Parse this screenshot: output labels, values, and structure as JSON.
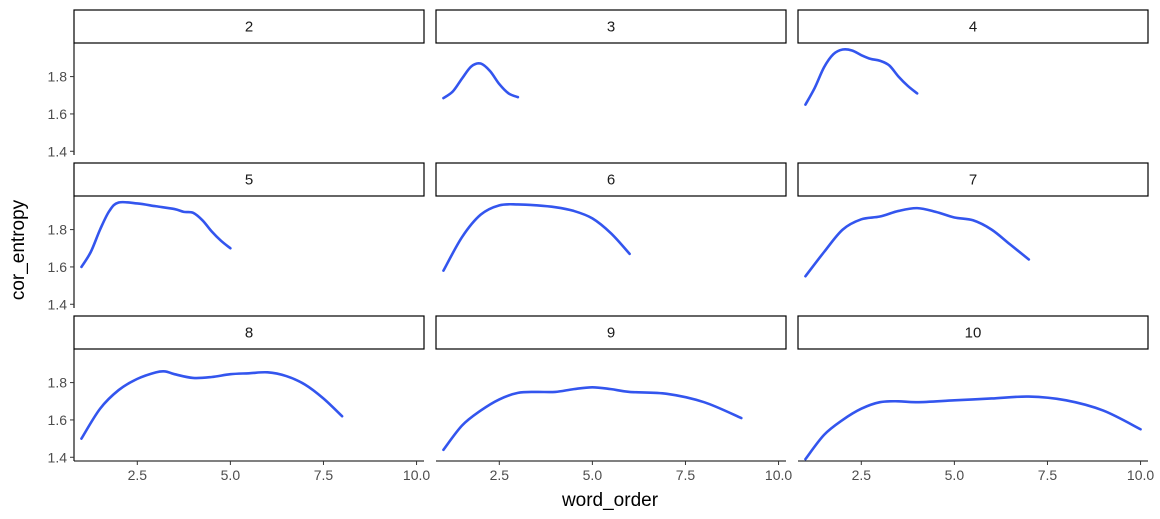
{
  "chart_data": {
    "type": "line",
    "facet_by": "panel",
    "xlabel": "word_order",
    "ylabel": "cor_entropy",
    "xlim": [
      0.8,
      10.2
    ],
    "ylim": [
      1.38,
      1.98
    ],
    "x_ticks": [
      2.5,
      5.0,
      7.5,
      10.0
    ],
    "x_tick_labels": [
      "2.5",
      "5.0",
      "7.5",
      "10.0"
    ],
    "y_ticks": [
      1.4,
      1.6,
      1.8
    ],
    "y_tick_labels": [
      "1.4",
      "1.6",
      "1.8"
    ],
    "line_color": "#3355ee",
    "grid": false,
    "facets": [
      {
        "label": "2",
        "x": [],
        "y": []
      },
      {
        "label": "3",
        "x": [
          1.0,
          1.25,
          1.5,
          1.75,
          2.0,
          2.25,
          2.5,
          2.75,
          3.0
        ],
        "y": [
          1.685,
          1.72,
          1.79,
          1.855,
          1.87,
          1.83,
          1.76,
          1.71,
          1.69
        ]
      },
      {
        "label": "4",
        "x": [
          1.0,
          1.25,
          1.5,
          1.75,
          2.0,
          2.25,
          2.5,
          2.75,
          3.0,
          3.25,
          3.5,
          3.75,
          4.0
        ],
        "y": [
          1.65,
          1.74,
          1.85,
          1.92,
          1.945,
          1.94,
          1.915,
          1.895,
          1.885,
          1.86,
          1.8,
          1.75,
          1.71
        ]
      },
      {
        "label": "5",
        "x": [
          1.0,
          1.25,
          1.5,
          1.75,
          2.0,
          2.5,
          3.0,
          3.5,
          3.75,
          4.0,
          4.25,
          4.5,
          4.75,
          5.0
        ],
        "y": [
          1.6,
          1.68,
          1.8,
          1.9,
          1.945,
          1.94,
          1.925,
          1.91,
          1.895,
          1.89,
          1.85,
          1.79,
          1.74,
          1.7
        ]
      },
      {
        "label": "6",
        "x": [
          1.0,
          1.5,
          2.0,
          2.5,
          3.0,
          3.5,
          4.0,
          4.5,
          5.0,
          5.5,
          6.0
        ],
        "y": [
          1.58,
          1.76,
          1.88,
          1.93,
          1.935,
          1.93,
          1.92,
          1.9,
          1.86,
          1.78,
          1.67
        ]
      },
      {
        "label": "7",
        "x": [
          1.0,
          1.5,
          2.0,
          2.5,
          3.0,
          3.5,
          4.0,
          4.5,
          5.0,
          5.5,
          6.0,
          6.5,
          7.0
        ],
        "y": [
          1.55,
          1.68,
          1.8,
          1.855,
          1.87,
          1.9,
          1.915,
          1.895,
          1.865,
          1.85,
          1.8,
          1.72,
          1.64
        ]
      },
      {
        "label": "8",
        "x": [
          1.0,
          1.5,
          2.0,
          2.5,
          3.0,
          3.25,
          3.5,
          4.0,
          4.5,
          5.0,
          5.5,
          6.0,
          6.5,
          7.0,
          7.5,
          8.0
        ],
        "y": [
          1.5,
          1.66,
          1.76,
          1.82,
          1.855,
          1.86,
          1.845,
          1.825,
          1.83,
          1.845,
          1.85,
          1.855,
          1.835,
          1.79,
          1.715,
          1.62
        ]
      },
      {
        "label": "9",
        "x": [
          1.0,
          1.5,
          2.0,
          2.5,
          3.0,
          3.5,
          4.0,
          4.5,
          5.0,
          5.5,
          6.0,
          7.0,
          8.0,
          9.0
        ],
        "y": [
          1.44,
          1.57,
          1.65,
          1.71,
          1.745,
          1.75,
          1.75,
          1.765,
          1.775,
          1.765,
          1.75,
          1.74,
          1.695,
          1.61
        ]
      },
      {
        "label": "10",
        "x": [
          1.0,
          1.5,
          2.0,
          2.5,
          3.0,
          3.5,
          4.0,
          5.0,
          6.0,
          7.0,
          8.0,
          9.0,
          10.0
        ],
        "y": [
          1.39,
          1.52,
          1.6,
          1.66,
          1.695,
          1.7,
          1.695,
          1.705,
          1.715,
          1.725,
          1.705,
          1.65,
          1.55
        ]
      }
    ]
  }
}
